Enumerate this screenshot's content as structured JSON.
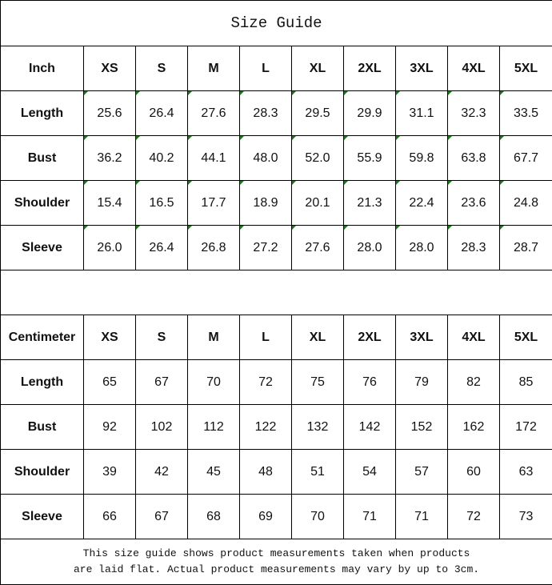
{
  "title": "Size Guide",
  "sizes": [
    "XS",
    "S",
    "M",
    "L",
    "XL",
    "2XL",
    "3XL",
    "4XL",
    "5XL"
  ],
  "inch_table": {
    "unit_label": "Inch",
    "rows": [
      {
        "label": "Length",
        "values": [
          "25.6",
          "26.4",
          "27.6",
          "28.3",
          "29.5",
          "29.9",
          "31.1",
          "32.3",
          "33.5"
        ]
      },
      {
        "label": "Bust",
        "values": [
          "36.2",
          "40.2",
          "44.1",
          "48.0",
          "52.0",
          "55.9",
          "59.8",
          "63.8",
          "67.7"
        ]
      },
      {
        "label": "Shoulder",
        "values": [
          "15.4",
          "16.5",
          "17.7",
          "18.9",
          "20.1",
          "21.3",
          "22.4",
          "23.6",
          "24.8"
        ]
      },
      {
        "label": "Sleeve",
        "values": [
          "26.0",
          "26.4",
          "26.8",
          "27.2",
          "27.6",
          "28.0",
          "28.0",
          "28.3",
          "28.7"
        ]
      }
    ]
  },
  "cm_table": {
    "unit_label": "Centimeter",
    "rows": [
      {
        "label": "Length",
        "values": [
          "65",
          "67",
          "70",
          "72",
          "75",
          "76",
          "79",
          "82",
          "85"
        ]
      },
      {
        "label": "Bust",
        "values": [
          "92",
          "102",
          "112",
          "122",
          "132",
          "142",
          "152",
          "162",
          "172"
        ]
      },
      {
        "label": "Shoulder",
        "values": [
          "39",
          "42",
          "45",
          "48",
          "51",
          "54",
          "57",
          "60",
          "63"
        ]
      },
      {
        "label": "Sleeve",
        "values": [
          "66",
          "67",
          "68",
          "69",
          "70",
          "71",
          "71",
          "72",
          "73"
        ]
      }
    ]
  },
  "note_line1": "This size guide shows product measurements taken when products",
  "note_line2": "are laid flat. Actual product measurements may vary by up to 3cm.",
  "colors": {
    "text_indicator": "#1a7a1a"
  }
}
